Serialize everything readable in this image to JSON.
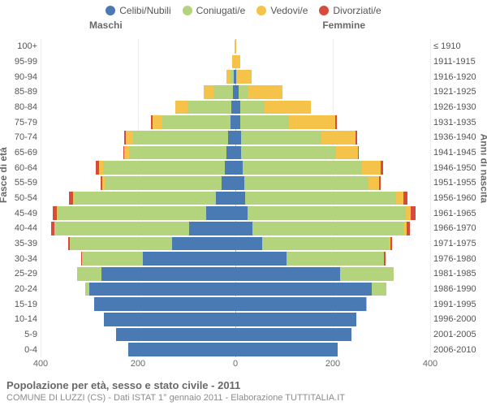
{
  "legend": [
    {
      "label": "Celibi/Nubili",
      "color": "#4a7ab3"
    },
    {
      "label": "Coniugati/e",
      "color": "#b3d47d"
    },
    {
      "label": "Vedovi/e",
      "color": "#f5c24a"
    },
    {
      "label": "Divorziati/e",
      "color": "#d84a3d"
    }
  ],
  "labels": {
    "male": "Maschi",
    "female": "Femmine",
    "left_axis": "Fasce di età",
    "right_axis": "Anni di nascita"
  },
  "title": "Popolazione per età, sesso e stato civile - 2011",
  "subtitle": "COMUNE DI LUZZI (CS) - Dati ISTAT 1° gennaio 2011 - Elaborazione TUTTITALIA.IT",
  "x_axis": {
    "max": 400,
    "ticks": [
      400,
      200,
      0,
      200,
      400
    ]
  },
  "colors": {
    "single": "#4a7ab3",
    "married": "#b3d47d",
    "widowed": "#f5c24a",
    "divorced": "#d84a3d",
    "background": "#ffffff",
    "grid": "#eeeeee",
    "center_line": "#bbbbbb"
  },
  "rows": [
    {
      "age": "100+",
      "year": "≤ 1910",
      "m": {
        "single": 0,
        "married": 0,
        "widowed": 2,
        "divorced": 0
      },
      "f": {
        "single": 0,
        "married": 0,
        "widowed": 2,
        "divorced": 0
      }
    },
    {
      "age": "95-99",
      "year": "1911-1915",
      "m": {
        "single": 0,
        "married": 2,
        "widowed": 4,
        "divorced": 0
      },
      "f": {
        "single": 0,
        "married": 0,
        "widowed": 10,
        "divorced": 0
      }
    },
    {
      "age": "90-94",
      "year": "1916-1920",
      "m": {
        "single": 3,
        "married": 7,
        "widowed": 8,
        "divorced": 0
      },
      "f": {
        "single": 2,
        "married": 2,
        "widowed": 30,
        "divorced": 0
      }
    },
    {
      "age": "85-89",
      "year": "1921-1925",
      "m": {
        "single": 5,
        "married": 40,
        "widowed": 20,
        "divorced": 0
      },
      "f": {
        "single": 6,
        "married": 20,
        "widowed": 70,
        "divorced": 0
      }
    },
    {
      "age": "80-84",
      "year": "1926-1930",
      "m": {
        "single": 8,
        "married": 90,
        "widowed": 25,
        "divorced": 0
      },
      "f": {
        "single": 10,
        "married": 50,
        "widowed": 95,
        "divorced": 0
      }
    },
    {
      "age": "75-79",
      "year": "1931-1935",
      "m": {
        "single": 10,
        "married": 140,
        "widowed": 20,
        "divorced": 3
      },
      "f": {
        "single": 10,
        "married": 100,
        "widowed": 95,
        "divorced": 3
      }
    },
    {
      "age": "70-74",
      "year": "1936-1940",
      "m": {
        "single": 15,
        "married": 195,
        "widowed": 15,
        "divorced": 3
      },
      "f": {
        "single": 12,
        "married": 165,
        "widowed": 70,
        "divorced": 3
      }
    },
    {
      "age": "65-69",
      "year": "1941-1945",
      "m": {
        "single": 18,
        "married": 200,
        "widowed": 10,
        "divorced": 2
      },
      "f": {
        "single": 12,
        "married": 195,
        "widowed": 45,
        "divorced": 2
      }
    },
    {
      "age": "60-64",
      "year": "1946-1950",
      "m": {
        "single": 22,
        "married": 250,
        "widowed": 8,
        "divorced": 6
      },
      "f": {
        "single": 15,
        "married": 245,
        "widowed": 38,
        "divorced": 5
      }
    },
    {
      "age": "55-59",
      "year": "1951-1955",
      "m": {
        "single": 28,
        "married": 240,
        "widowed": 5,
        "divorced": 4
      },
      "f": {
        "single": 18,
        "married": 255,
        "widowed": 22,
        "divorced": 4
      }
    },
    {
      "age": "50-54",
      "year": "1956-1960",
      "m": {
        "single": 40,
        "married": 290,
        "widowed": 4,
        "divorced": 8
      },
      "f": {
        "single": 20,
        "married": 310,
        "widowed": 15,
        "divorced": 8
      }
    },
    {
      "age": "45-49",
      "year": "1961-1965",
      "m": {
        "single": 60,
        "married": 305,
        "widowed": 2,
        "divorced": 8
      },
      "f": {
        "single": 25,
        "married": 325,
        "widowed": 10,
        "divorced": 10
      }
    },
    {
      "age": "40-44",
      "year": "1966-1970",
      "m": {
        "single": 95,
        "married": 275,
        "widowed": 2,
        "divorced": 6
      },
      "f": {
        "single": 35,
        "married": 310,
        "widowed": 6,
        "divorced": 8
      }
    },
    {
      "age": "35-39",
      "year": "1971-1975",
      "m": {
        "single": 130,
        "married": 210,
        "widowed": 0,
        "divorced": 4
      },
      "f": {
        "single": 55,
        "married": 260,
        "widowed": 3,
        "divorced": 4
      }
    },
    {
      "age": "30-34",
      "year": "1976-1980",
      "m": {
        "single": 190,
        "married": 125,
        "widowed": 0,
        "divorced": 2
      },
      "f": {
        "single": 105,
        "married": 200,
        "widowed": 0,
        "divorced": 3
      }
    },
    {
      "age": "25-29",
      "year": "1981-1985",
      "m": {
        "single": 275,
        "married": 50,
        "widowed": 0,
        "divorced": 0
      },
      "f": {
        "single": 215,
        "married": 110,
        "widowed": 0,
        "divorced": 0
      }
    },
    {
      "age": "20-24",
      "year": "1986-1990",
      "m": {
        "single": 300,
        "married": 8,
        "widowed": 0,
        "divorced": 0
      },
      "f": {
        "single": 280,
        "married": 30,
        "widowed": 0,
        "divorced": 0
      }
    },
    {
      "age": "15-19",
      "year": "1991-1995",
      "m": {
        "single": 290,
        "married": 0,
        "widowed": 0,
        "divorced": 0
      },
      "f": {
        "single": 268,
        "married": 2,
        "widowed": 0,
        "divorced": 0
      }
    },
    {
      "age": "10-14",
      "year": "1996-2000",
      "m": {
        "single": 270,
        "married": 0,
        "widowed": 0,
        "divorced": 0
      },
      "f": {
        "single": 248,
        "married": 0,
        "widowed": 0,
        "divorced": 0
      }
    },
    {
      "age": "5-9",
      "year": "2001-2005",
      "m": {
        "single": 245,
        "married": 0,
        "widowed": 0,
        "divorced": 0
      },
      "f": {
        "single": 238,
        "married": 0,
        "widowed": 0,
        "divorced": 0
      }
    },
    {
      "age": "0-4",
      "year": "2006-2010",
      "m": {
        "single": 220,
        "married": 0,
        "widowed": 0,
        "divorced": 0
      },
      "f": {
        "single": 210,
        "married": 0,
        "widowed": 0,
        "divorced": 0
      }
    }
  ]
}
